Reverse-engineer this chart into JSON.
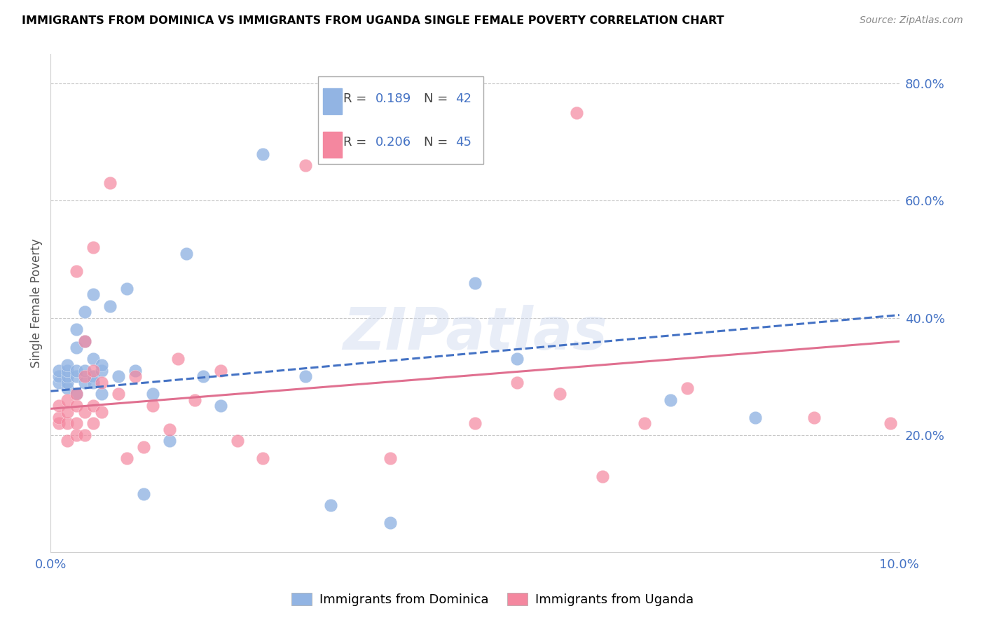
{
  "title": "IMMIGRANTS FROM DOMINICA VS IMMIGRANTS FROM UGANDA SINGLE FEMALE POVERTY CORRELATION CHART",
  "source": "Source: ZipAtlas.com",
  "ylabel": "Single Female Poverty",
  "xlim": [
    0.0,
    0.1
  ],
  "ylim": [
    0.0,
    0.85
  ],
  "right_yticks": [
    0.2,
    0.4,
    0.6,
    0.8
  ],
  "right_yticklabels": [
    "20.0%",
    "40.0%",
    "60.0%",
    "80.0%"
  ],
  "xticks": [
    0.0,
    0.025,
    0.05,
    0.075,
    0.1
  ],
  "xticklabels": [
    "0.0%",
    "",
    "",
    "",
    "10.0%"
  ],
  "dominica_R": 0.189,
  "dominica_N": 42,
  "uganda_R": 0.206,
  "uganda_N": 45,
  "dominica_color": "#92b4e3",
  "uganda_color": "#f4879f",
  "dominica_line_color": "#4472c4",
  "uganda_line_color": "#e07090",
  "watermark": "ZIPatlas",
  "dominica_x": [
    0.001,
    0.001,
    0.001,
    0.002,
    0.002,
    0.002,
    0.002,
    0.002,
    0.003,
    0.003,
    0.003,
    0.003,
    0.003,
    0.004,
    0.004,
    0.004,
    0.004,
    0.005,
    0.005,
    0.005,
    0.005,
    0.006,
    0.006,
    0.006,
    0.007,
    0.008,
    0.009,
    0.01,
    0.011,
    0.012,
    0.014,
    0.016,
    0.018,
    0.02,
    0.025,
    0.03,
    0.033,
    0.04,
    0.05,
    0.055,
    0.073,
    0.083
  ],
  "dominica_y": [
    0.29,
    0.3,
    0.31,
    0.28,
    0.29,
    0.3,
    0.31,
    0.32,
    0.27,
    0.3,
    0.31,
    0.35,
    0.38,
    0.29,
    0.31,
    0.36,
    0.41,
    0.29,
    0.3,
    0.33,
    0.44,
    0.27,
    0.31,
    0.32,
    0.42,
    0.3,
    0.45,
    0.31,
    0.1,
    0.27,
    0.19,
    0.51,
    0.3,
    0.25,
    0.68,
    0.3,
    0.08,
    0.05,
    0.46,
    0.33,
    0.26,
    0.23
  ],
  "uganda_x": [
    0.001,
    0.001,
    0.001,
    0.002,
    0.002,
    0.002,
    0.002,
    0.003,
    0.003,
    0.003,
    0.003,
    0.003,
    0.004,
    0.004,
    0.004,
    0.004,
    0.005,
    0.005,
    0.005,
    0.005,
    0.006,
    0.006,
    0.007,
    0.008,
    0.009,
    0.01,
    0.011,
    0.012,
    0.014,
    0.015,
    0.017,
    0.02,
    0.022,
    0.025,
    0.03,
    0.04,
    0.05,
    0.055,
    0.06,
    0.062,
    0.065,
    0.07,
    0.075,
    0.09,
    0.099
  ],
  "uganda_y": [
    0.22,
    0.23,
    0.25,
    0.19,
    0.22,
    0.24,
    0.26,
    0.2,
    0.22,
    0.25,
    0.27,
    0.48,
    0.2,
    0.24,
    0.3,
    0.36,
    0.22,
    0.25,
    0.31,
    0.52,
    0.24,
    0.29,
    0.63,
    0.27,
    0.16,
    0.3,
    0.18,
    0.25,
    0.21,
    0.33,
    0.26,
    0.31,
    0.19,
    0.16,
    0.66,
    0.16,
    0.22,
    0.29,
    0.27,
    0.75,
    0.13,
    0.22,
    0.28,
    0.23,
    0.22
  ],
  "dom_line_x0": 0.0,
  "dom_line_x1": 0.1,
  "dom_line_y0": 0.275,
  "dom_line_y1": 0.405,
  "uga_line_x0": 0.0,
  "uga_line_x1": 0.1,
  "uga_line_y0": 0.245,
  "uga_line_y1": 0.36
}
